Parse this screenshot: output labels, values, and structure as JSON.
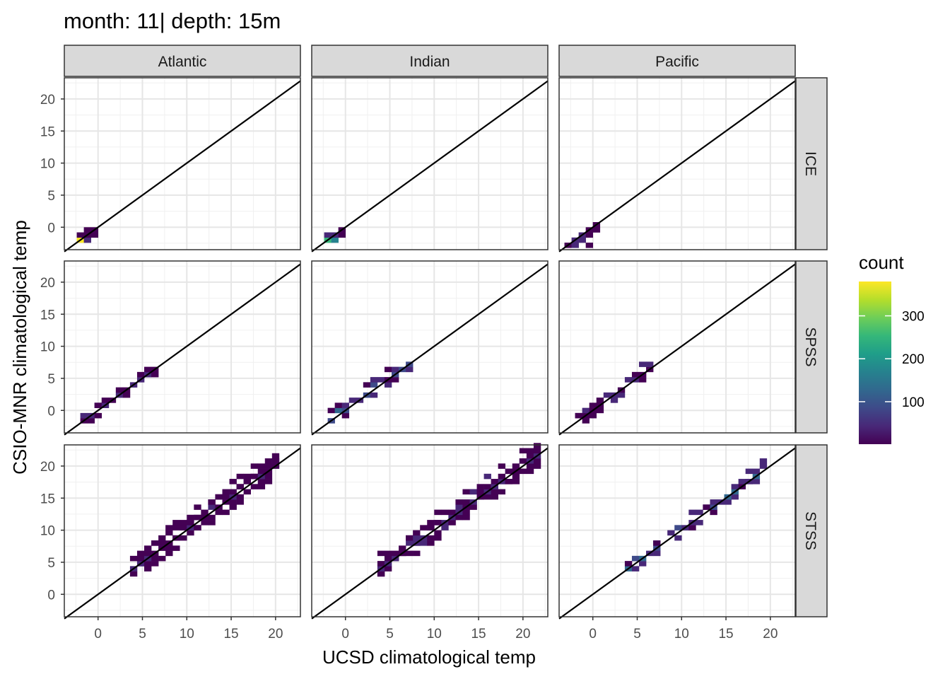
{
  "chart_data": {
    "type": "heatmap",
    "title": "month: 11| depth: 15m",
    "xlabel": "UCSD climatological temp",
    "ylabel": "CSIO-MNR climatological temp",
    "xlim": [
      -3.8,
      22.8
    ],
    "ylim": [
      -3.5,
      23.3
    ],
    "x_ticks": [
      0,
      5,
      10,
      15,
      20
    ],
    "y_ticks": [
      0,
      5,
      10,
      15,
      20
    ],
    "bin_width": 0.8,
    "grid": true,
    "reference_line": "y = x",
    "facet_columns": [
      "Atlantic",
      "Indian",
      "Pacific"
    ],
    "facet_rows": [
      "ICE",
      "SPSS",
      "STSS"
    ],
    "legend": {
      "title": "count",
      "position": "right",
      "ticks": [
        100,
        200,
        300
      ],
      "range": [
        1,
        380
      ],
      "colors": [
        "#440154",
        "#482878",
        "#3e4a89",
        "#31688e",
        "#26828e",
        "#1f9e89",
        "#35b779",
        "#6ece58",
        "#b5de2b",
        "#fde725"
      ]
    },
    "panels": [
      {
        "col": "Atlantic",
        "row": "ICE",
        "cells": [
          [
            -2,
            -2,
            380
          ],
          [
            -1.2,
            -2,
            40
          ],
          [
            -1.2,
            -1.2,
            15
          ],
          [
            -2,
            -1.2,
            10
          ],
          [
            -0.4,
            -0.4,
            8
          ],
          [
            -0.4,
            -1.2,
            6
          ],
          [
            -1.2,
            -0.4,
            5
          ]
        ]
      },
      {
        "col": "Indian",
        "row": "ICE",
        "cells": [
          [
            -2,
            -2,
            260
          ],
          [
            -1.2,
            -2,
            150
          ],
          [
            -1.2,
            -1.2,
            40
          ],
          [
            -2,
            -1.2,
            30
          ],
          [
            -0.4,
            -0.4,
            15
          ],
          [
            -0.4,
            -1.2,
            10
          ]
        ]
      },
      {
        "col": "Pacific",
        "row": "ICE",
        "cells": [
          [
            -2.8,
            -2.8,
            10
          ],
          [
            -2,
            -2.8,
            25
          ],
          [
            -2,
            -2,
            35
          ],
          [
            -1.2,
            -2,
            30
          ],
          [
            -1.2,
            -1.2,
            25
          ],
          [
            -0.4,
            -1.2,
            20
          ],
          [
            -0.4,
            -0.4,
            15
          ],
          [
            0.4,
            -0.4,
            10
          ],
          [
            0.4,
            0.4,
            8
          ],
          [
            -0.4,
            -2.8,
            5
          ]
        ]
      }
    ]
  }
}
